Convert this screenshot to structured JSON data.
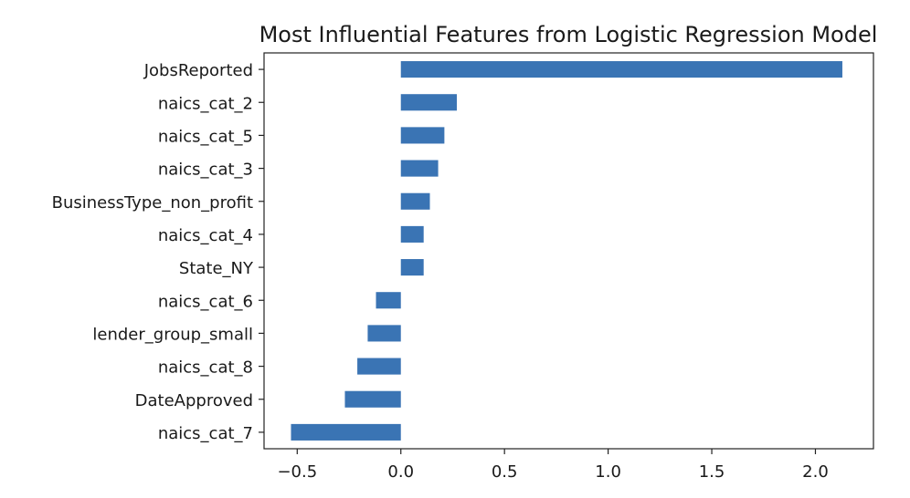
{
  "chart_data": {
    "type": "bar",
    "orientation": "horizontal",
    "title": "Most Influential Features from Logistic Regression Model",
    "xlabel": "",
    "ylabel": "",
    "categories": [
      "JobsReported",
      "naics_cat_2",
      "naics_cat_5",
      "naics_cat_3",
      "BusinessType_non_profit",
      "naics_cat_4",
      "State_NY",
      "naics_cat_6",
      "lender_group_small",
      "naics_cat_8",
      "DateApproved",
      "naics_cat_7"
    ],
    "values": [
      2.13,
      0.27,
      0.21,
      0.18,
      0.14,
      0.11,
      0.11,
      -0.12,
      -0.16,
      -0.21,
      -0.27,
      -0.53
    ],
    "xlim": [
      -0.66,
      2.28
    ],
    "xticks": [
      -0.5,
      0.0,
      0.5,
      1.0,
      1.5,
      2.0
    ],
    "xtick_labels": [
      "−0.5",
      "0.0",
      "0.5",
      "1.0",
      "1.5",
      "2.0"
    ],
    "grid": false,
    "bar_color": "#3a74b4"
  }
}
